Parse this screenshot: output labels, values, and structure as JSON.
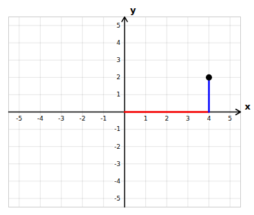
{
  "chart_data": {
    "type": "scatter",
    "xlabel": "x",
    "ylabel": "y",
    "xlim": [
      -5.5,
      5.5
    ],
    "ylim": [
      -5.5,
      5.5
    ],
    "xticks": [
      -5,
      -4,
      -3,
      -2,
      -1,
      1,
      2,
      3,
      4,
      5
    ],
    "yticks": [
      -5,
      -4,
      -3,
      -2,
      -1,
      1,
      2,
      3,
      4,
      5
    ],
    "grid": true,
    "series": [
      {
        "type": "line",
        "color": "#ff0000",
        "x": [
          0,
          4
        ],
        "values": [
          0,
          0
        ]
      },
      {
        "type": "line",
        "color": "#0000ff",
        "x": [
          4,
          4
        ],
        "values": [
          0,
          2
        ]
      },
      {
        "type": "scatter",
        "color": "#000000",
        "x": [
          4
        ],
        "values": [
          2
        ]
      }
    ]
  }
}
